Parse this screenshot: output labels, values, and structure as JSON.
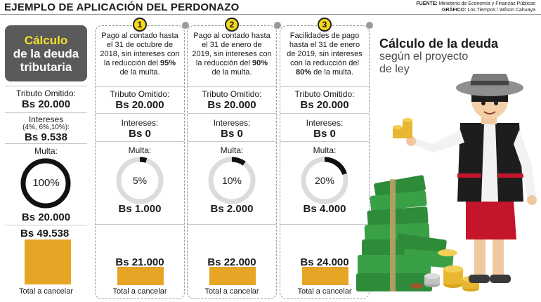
{
  "header": {
    "title": "EJEMPLO DE APLICACIÓN DEL PERDONAZO",
    "source_label": "FUENTE:",
    "source_text": "Ministerio de Economía y Finanzas Públicas",
    "graphic_label": "GRÁFICO:",
    "graphic_text": "Los Tiempos / Wilson Cahuaya"
  },
  "left": {
    "title_line1": "Cálculo",
    "title_line2": "de la deuda",
    "title_line3": "tributaria",
    "tributo_label": "Tributo Omitido:",
    "tributo_value": "Bs 20.000",
    "intereses_label": "Intereses",
    "intereses_rates": "(4%, 6%,10%):",
    "intereses_value": "Bs 9.538",
    "multa_label": "Multa:",
    "multa_pct": "100%",
    "multa_value": "Bs 20.000",
    "total_value": "Bs 49.538",
    "total_label": "Total a cancelar"
  },
  "cards": [
    {
      "badge": "1",
      "text_a": "Pago al contado hasta el 31 de octubre de 2018, sin intereses con la reducción del ",
      "text_pct": "95%",
      "text_b": " de la multa.",
      "tributo_label": "Tributo Omitido:",
      "tributo_value": "Bs 20.000",
      "intereses_label": "Intereses:",
      "intereses_value": "Bs 0",
      "multa_label": "Multa:",
      "multa_pct": "5%",
      "multa_fraction": 0.05,
      "multa_value": "Bs 1.000",
      "total_value": "Bs 21.000",
      "total_label": "Total a cancelar"
    },
    {
      "badge": "2",
      "text_a": "Pago al contado hasta el 31 de enero de 2019, sin intereses con la reducción del ",
      "text_pct": "90%",
      "text_b": " de la multa.",
      "tributo_label": "Tributo Omitido:",
      "tributo_value": "Bs 20.000",
      "intereses_label": "Intereses:",
      "intereses_value": "Bs 0",
      "multa_label": "Multa:",
      "multa_pct": "10%",
      "multa_fraction": 0.1,
      "multa_value": "Bs 2.000",
      "total_value": "Bs 22.000",
      "total_label": "Total a cancelar"
    },
    {
      "badge": "3",
      "text_a": "Facilidades de pago hasta el 31 de enero de 2019, sin intereses con la reducción del ",
      "text_pct": "80%",
      "text_b": " de la multa.",
      "tributo_label": "Tributo Omitido:",
      "tributo_value": "Bs 20.000",
      "intereses_label": "Intereses:",
      "intereses_value": "Bs 0",
      "multa_label": "Multa:",
      "multa_pct": "20%",
      "multa_fraction": 0.2,
      "multa_value": "Bs 4.000",
      "total_value": "Bs 24.000",
      "total_label": "Total a cancelar"
    }
  ],
  "right": {
    "title": "Cálculo de la deuda",
    "subtitle_line1": "según el proyecto",
    "subtitle_line2": "de ley"
  },
  "colors": {
    "accent_yellow": "#f5e02a",
    "bar_gold": "#e6a524",
    "panel_gray": "#5a5a5a",
    "money_green": "#2e8b3a"
  }
}
